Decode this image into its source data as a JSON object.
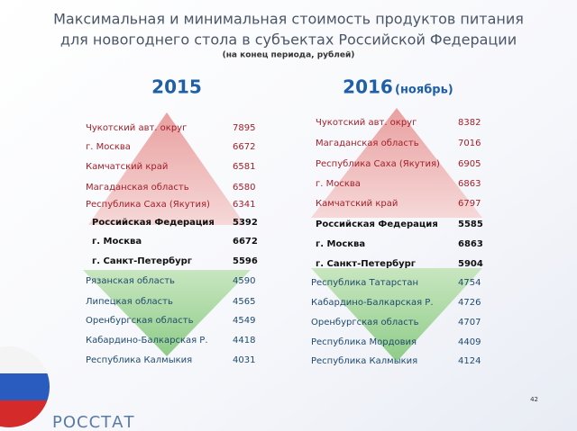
{
  "header": {
    "title_lines": [
      "Максимальная и минимальная стоимость продуктов питания",
      "для новогоднего стола в субъектах Российской Федерации"
    ],
    "subtitle": "(на конец периода, рублей)"
  },
  "panels": [
    {
      "year": "2015",
      "rows": [
        {
          "name": "Чукотский авт. округ",
          "value": 7895
        },
        {
          "name": "г. Москва",
          "value": 6672
        },
        {
          "name": "Камчатский край",
          "value": 6581
        },
        {
          "name": "Магаданская область",
          "value": 6580
        },
        {
          "name": "Республика Саха (Якутия)",
          "value": 6341
        },
        {
          "name": "Российская Федерация",
          "value": 5392
        },
        {
          "name": "г. Москва",
          "value": 6672
        },
        {
          "name": "г. Санкт-Петербург",
          "value": 5596
        },
        {
          "name": "Рязанская область",
          "value": 4590
        },
        {
          "name": "Липецкая область",
          "value": 4565
        },
        {
          "name": "Оренбургская область",
          "value": 4549
        },
        {
          "name": "Кабардино-Балкарская Р.",
          "value": 4418
        },
        {
          "name": "Республика Калмыкия",
          "value": 4031
        }
      ]
    },
    {
      "year": "2016",
      "note": "(ноябрь)",
      "rows": [
        {
          "name": "Чукотский авт. округ",
          "value": 8382
        },
        {
          "name": "Магаданская область",
          "value": 7016
        },
        {
          "name": "Республика Саха (Якутия)",
          "value": 6905
        },
        {
          "name": "г. Москва",
          "value": 6863
        },
        {
          "name": "Камчатский край",
          "value": 6797
        },
        {
          "name": "Российская Федерация",
          "value": 5585
        },
        {
          "name": "г. Москва",
          "value": 6863
        },
        {
          "name": "г. Санкт-Петербург",
          "value": 5904
        },
        {
          "name": "Республика Татарстан",
          "value": 4754
        },
        {
          "name": "Кабардино-Балкарская Р.",
          "value": 4726
        },
        {
          "name": "Оренбургская область",
          "value": 4707
        },
        {
          "name": "Республика Мордовия",
          "value": 4409
        },
        {
          "name": "Республика Калмыкия",
          "value": 4124
        }
      ]
    }
  ],
  "footer": {
    "page": "42",
    "logo": "РОССТАТ"
  }
}
